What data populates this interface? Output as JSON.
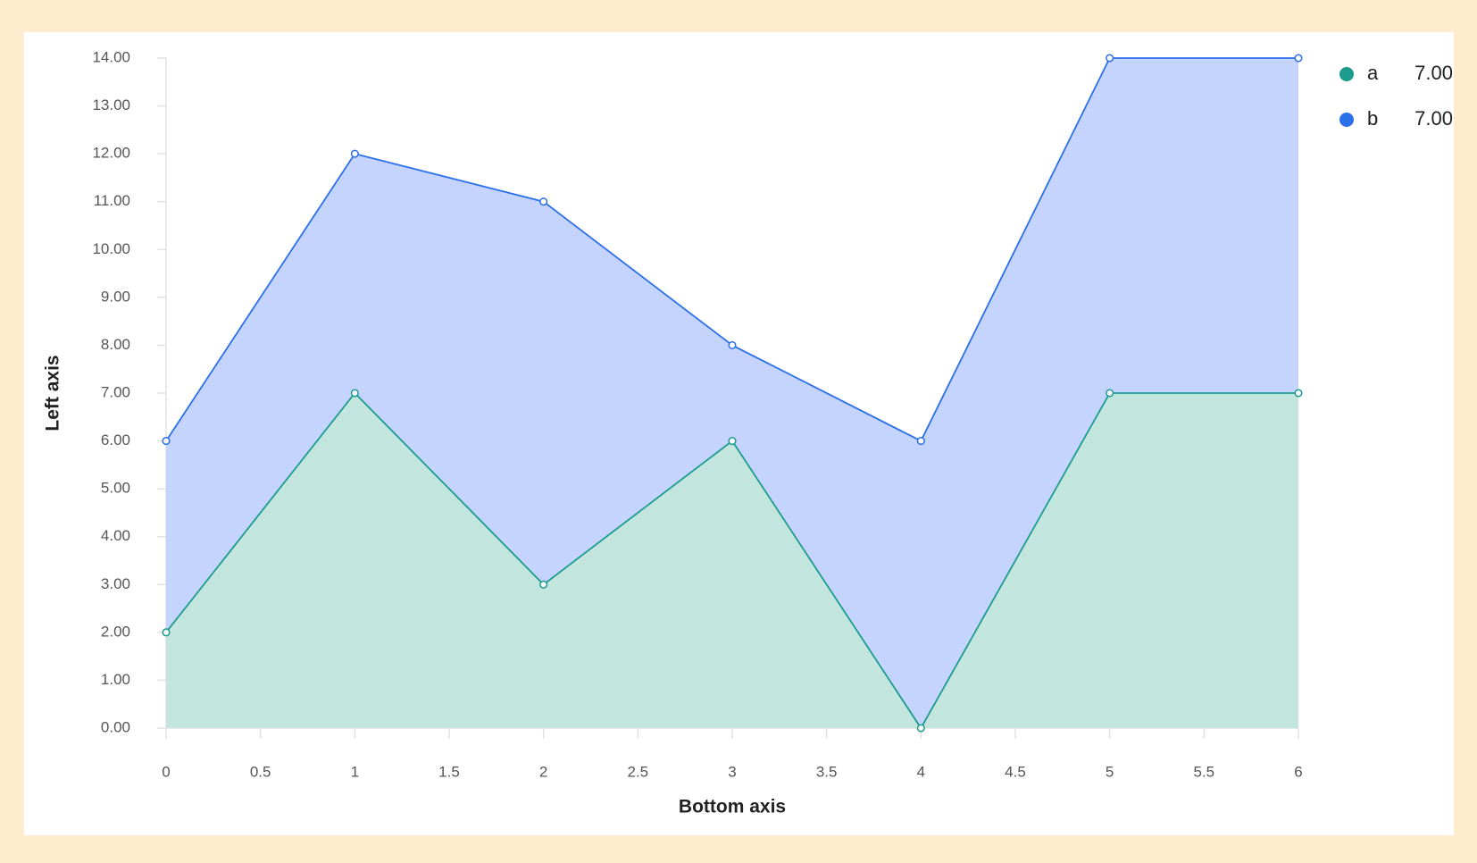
{
  "chart_data": {
    "type": "stacked-area",
    "x_label": "Bottom axis",
    "y_label": "Left axis",
    "x": [
      0,
      1,
      2,
      3,
      4,
      5,
      6
    ],
    "series": [
      {
        "name": "a",
        "color": "#1b9c8e",
        "fill": "#c2e5de",
        "values": [
          2,
          7,
          3,
          6,
          0,
          7,
          7
        ],
        "legend_value": {
          "value": 7,
          "label": "7.00"
        }
      },
      {
        "name": "b",
        "color": "#2b6fe9",
        "fill": "#c5d4fd",
        "values": [
          4,
          5,
          8,
          2,
          6,
          7,
          7
        ],
        "legend_value": {
          "value": 7,
          "label": "7.00"
        }
      }
    ],
    "xlim": [
      0,
      6
    ],
    "xticks": [
      0,
      0.5,
      1,
      1.5,
      2,
      2.5,
      3,
      3.5,
      4,
      4.5,
      5,
      5.5,
      6
    ],
    "ylim": [
      0,
      14
    ],
    "yticks": [
      {
        "value": 0,
        "label": "0.00"
      },
      {
        "value": 1,
        "label": "1.00"
      },
      {
        "value": 2,
        "label": "2.00"
      },
      {
        "value": 3,
        "label": "3.00"
      },
      {
        "value": 4,
        "label": "4.00"
      },
      {
        "value": 5,
        "label": "5.00"
      },
      {
        "value": 6,
        "label": "6.00"
      },
      {
        "value": 7,
        "label": "7.00"
      },
      {
        "value": 8,
        "label": "8.00"
      },
      {
        "value": 9,
        "label": "9.00"
      },
      {
        "value": 10,
        "label": "10.00"
      },
      {
        "value": 11,
        "label": "11.00"
      },
      {
        "value": 12,
        "label": "12.00"
      },
      {
        "value": 13,
        "label": "13.00"
      },
      {
        "value": 14,
        "label": "14.00"
      }
    ],
    "legend_position": "top-right"
  }
}
